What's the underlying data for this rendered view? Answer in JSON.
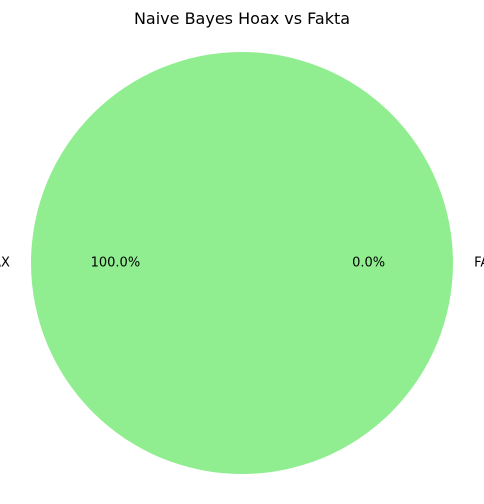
{
  "chart_data": {
    "type": "pie",
    "title": "Naive Bayes Hoax vs Fakta",
    "slices": [
      {
        "label": "HOAX",
        "value": 100.0,
        "pct_label": "100.0%",
        "color": "#90ee90"
      },
      {
        "label": "FAKTA",
        "value": 0.0,
        "pct_label": "0.0%",
        "color": "#add8e6"
      }
    ],
    "start_angle_deg": 0,
    "legend": "none"
  }
}
